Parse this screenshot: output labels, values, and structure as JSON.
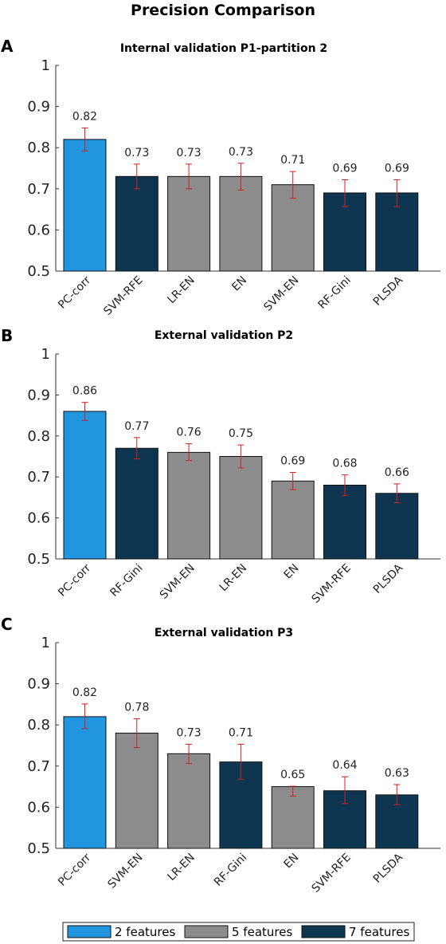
{
  "title": "Precision Comparison",
  "colors": {
    "2 features": "#2196df",
    "5 features": "#8c8c8c",
    "7 features": "#0e3651",
    "error": "#d21f1f"
  },
  "legend": {
    "position": "bottom",
    "entries": [
      {
        "label": "2 features",
        "color": "#2196df"
      },
      {
        "label": "5 features",
        "color": "#8c8c8c"
      },
      {
        "label": "7 features",
        "color": "#0e3651"
      }
    ]
  },
  "chart_data": [
    {
      "panel": "A",
      "type": "bar",
      "title": "Internal validation P1-partition 2",
      "ylim": [
        0.5,
        1
      ],
      "yticks": [
        0.5,
        0.6,
        0.7,
        0.8,
        0.9,
        1
      ],
      "ytick_labels": [
        "0.5",
        "0.6",
        "0.7",
        "0.8",
        "0.9",
        "1"
      ],
      "categories": [
        "PC-corr",
        "SVM-RFE",
        "LR-EN",
        "EN",
        "SVM-EN",
        "RF-Gini",
        "PLSDA"
      ],
      "values": [
        0.82,
        0.73,
        0.73,
        0.73,
        0.71,
        0.69,
        0.69
      ],
      "labels": [
        "0.82",
        "0.73",
        "0.73",
        "0.73",
        "0.71",
        "0.69",
        "0.69"
      ],
      "error_low": [
        0.792,
        0.7,
        0.7,
        0.697,
        0.677,
        0.657,
        0.657
      ],
      "error_high": [
        0.848,
        0.76,
        0.76,
        0.762,
        0.742,
        0.722,
        0.722
      ],
      "groups": [
        "2 features",
        "7 features",
        "5 features",
        "5 features",
        "5 features",
        "7 features",
        "7 features"
      ]
    },
    {
      "panel": "B",
      "type": "bar",
      "title": "External validation P2",
      "ylim": [
        0.5,
        1
      ],
      "yticks": [
        0.5,
        0.6,
        0.7,
        0.8,
        0.9,
        1
      ],
      "ytick_labels": [
        "0.5",
        "0.6",
        "0.7",
        "0.8",
        "0.9",
        "1"
      ],
      "categories": [
        "PC-corr",
        "RF-Gini",
        "SVM-EN",
        "LR-EN",
        "EN",
        "SVM-RFE",
        "PLSDA"
      ],
      "values": [
        0.86,
        0.77,
        0.76,
        0.75,
        0.69,
        0.68,
        0.66
      ],
      "labels": [
        "0.86",
        "0.77",
        "0.76",
        "0.75",
        "0.69",
        "0.68",
        "0.66"
      ],
      "error_low": [
        0.838,
        0.744,
        0.74,
        0.722,
        0.669,
        0.655,
        0.637
      ],
      "error_high": [
        0.882,
        0.796,
        0.781,
        0.778,
        0.711,
        0.705,
        0.683
      ],
      "groups": [
        "2 features",
        "7 features",
        "5 features",
        "5 features",
        "5 features",
        "7 features",
        "7 features"
      ]
    },
    {
      "panel": "C",
      "type": "bar",
      "title": "External validation P3",
      "ylim": [
        0.5,
        1
      ],
      "yticks": [
        0.5,
        0.6,
        0.7,
        0.8,
        0.9,
        1
      ],
      "ytick_labels": [
        "0.5",
        "0.6",
        "0.7",
        "0.8",
        "0.9",
        "1"
      ],
      "categories": [
        "PC-corr",
        "SVM-EN",
        "LR-EN",
        "RF-Gini",
        "EN",
        "SVM-RFE",
        "PLSDA"
      ],
      "values": [
        0.82,
        0.78,
        0.73,
        0.71,
        0.65,
        0.64,
        0.63
      ],
      "labels": [
        "0.82",
        "0.78",
        "0.73",
        "0.71",
        "0.65",
        "0.64",
        "0.63"
      ],
      "error_low": [
        0.791,
        0.745,
        0.706,
        0.668,
        0.627,
        0.609,
        0.606
      ],
      "error_high": [
        0.851,
        0.815,
        0.753,
        0.753,
        0.651,
        0.674,
        0.655
      ],
      "groups": [
        "2 features",
        "5 features",
        "5 features",
        "7 features",
        "5 features",
        "7 features",
        "7 features"
      ]
    }
  ]
}
